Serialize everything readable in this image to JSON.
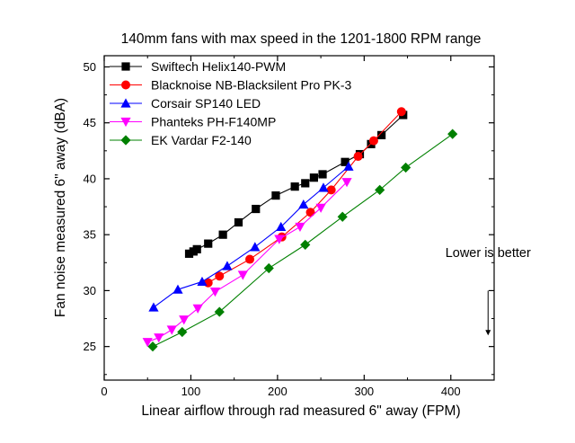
{
  "chart_data": {
    "type": "line",
    "title": "140mm fans with max speed in the 1201-1800 RPM range",
    "xlabel": "Linear airflow through rad measured 6\" away (FPM)",
    "ylabel": "Fan noise measured 6\" away (dBA)",
    "xlim": [
      0,
      450
    ],
    "ylim": [
      22,
      51
    ],
    "xticks": [
      0,
      100,
      200,
      300,
      400
    ],
    "yticks": [
      25,
      30,
      35,
      40,
      45,
      50
    ],
    "xtick_labels": [
      "0",
      "100",
      "200",
      "300",
      "400"
    ],
    "ytick_labels": [
      "25",
      "30",
      "35",
      "40",
      "45",
      "50"
    ],
    "grid": false,
    "legend_position": "top-left",
    "annotation": {
      "text": "Lower is better",
      "arrow_direction": "down",
      "x": 443,
      "y_top": 30.0,
      "y_bottom": 26.0,
      "text_x": 443,
      "text_y": 33.0
    },
    "series": [
      {
        "name": "Swiftech Helix140-PWM",
        "color": "#000000",
        "marker": "square",
        "x": [
          98,
          103,
          107,
          120,
          137,
          155,
          175,
          198,
          220,
          232,
          242,
          252,
          278,
          295,
          308,
          320,
          345
        ],
        "y": [
          33.3,
          33.5,
          33.7,
          34.2,
          35.0,
          36.1,
          37.3,
          38.5,
          39.3,
          39.6,
          40.1,
          40.4,
          41.5,
          42.2,
          43.1,
          43.9,
          45.7
        ]
      },
      {
        "name": "Blacknoise NB-Blacksilent Pro PK-3",
        "color": "#ff0000",
        "marker": "circle",
        "x": [
          120,
          133,
          168,
          205,
          238,
          262,
          293,
          311,
          343
        ],
        "y": [
          30.7,
          31.3,
          32.8,
          34.8,
          37.0,
          39.0,
          42.0,
          43.4,
          46.0
        ]
      },
      {
        "name": "Corsair SP140 LED",
        "color": "#0000ff",
        "marker": "triangle-up",
        "x": [
          57,
          85,
          113,
          142,
          174,
          204,
          230,
          253,
          282
        ],
        "y": [
          28.5,
          30.1,
          30.8,
          32.2,
          33.9,
          35.7,
          37.7,
          39.2,
          41.1
        ]
      },
      {
        "name": "Phanteks PH-F140MP",
        "color": "#ff00ff",
        "marker": "triangle-down",
        "x": [
          50,
          63,
          78,
          92,
          108,
          128,
          160,
          202,
          226,
          250,
          280
        ],
        "y": [
          25.4,
          25.8,
          26.5,
          27.4,
          28.4,
          29.9,
          31.4,
          34.6,
          35.7,
          37.4,
          39.7
        ]
      },
      {
        "name": "EK Vardar F2-140",
        "color": "#008000",
        "marker": "diamond",
        "x": [
          56,
          90,
          133,
          190,
          232,
          275,
          318,
          348,
          402
        ],
        "y": [
          25.0,
          26.3,
          28.1,
          32.0,
          34.1,
          36.6,
          39.0,
          41.0,
          44.0
        ]
      }
    ]
  }
}
